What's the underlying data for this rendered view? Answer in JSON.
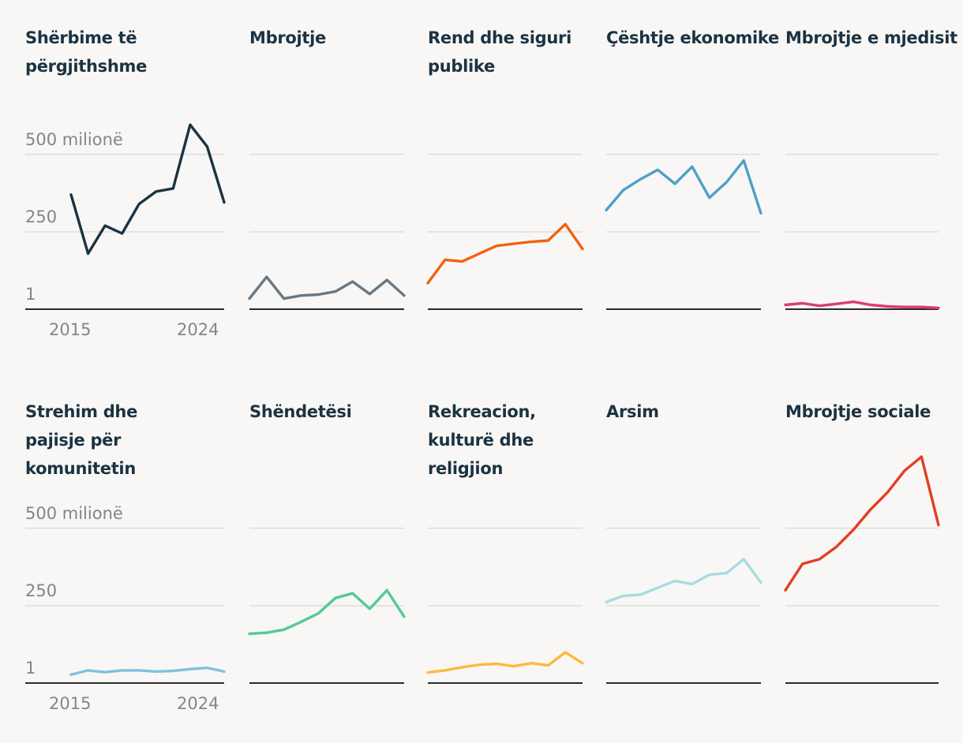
{
  "chart_data": {
    "type": "line",
    "layout": "small-multiples",
    "x": [
      2015,
      2016,
      2017,
      2018,
      2019,
      2020,
      2021,
      2022,
      2023,
      2024
    ],
    "x_tick_labels": [
      "2015",
      "2024"
    ],
    "y_ticks": [
      1,
      250,
      500
    ],
    "y_tick_labels": [
      "1",
      "250",
      "500 milionë"
    ],
    "ylim": [
      1,
      500
    ],
    "grid": true,
    "series": [
      {
        "name": "Shërbime të përgjithshme",
        "color": "#1b3342",
        "values": [
          370,
          180,
          270,
          245,
          340,
          380,
          390,
          595,
          525,
          345
        ]
      },
      {
        "name": "Mbrojtje",
        "color": "#667985",
        "values": [
          35,
          105,
          35,
          45,
          48,
          58,
          90,
          50,
          95,
          45
        ]
      },
      {
        "name": "Rend dhe siguri publike",
        "color": "#f4600f",
        "values": [
          85,
          160,
          155,
          180,
          205,
          212,
          218,
          222,
          275,
          195
        ]
      },
      {
        "name": "Çështje ekonomike",
        "color": "#509fcb",
        "values": [
          320,
          385,
          420,
          450,
          405,
          460,
          360,
          410,
          480,
          310
        ]
      },
      {
        "name": "Mbrojtje e mjedisit",
        "color": "#dc3a77",
        "values": [
          15,
          20,
          12,
          18,
          25,
          15,
          10,
          8,
          8,
          5
        ]
      },
      {
        "name": "Strehim dhe pajisje për komunitetin",
        "color": "#7ec1de",
        "values": [
          28,
          42,
          36,
          42,
          42,
          38,
          40,
          46,
          50,
          38
        ]
      },
      {
        "name": "Shëndetësi",
        "color": "#55c998",
        "values": [
          160,
          163,
          173,
          198,
          225,
          275,
          290,
          240,
          300,
          215
        ]
      },
      {
        "name": "Rekreacion, kulturë dhe religjion",
        "color": "#fbba3f",
        "values": [
          35,
          42,
          52,
          60,
          63,
          55,
          65,
          58,
          100,
          65
        ]
      },
      {
        "name": "Arsim",
        "color": "#a5dde0",
        "values": [
          262,
          282,
          286,
          308,
          330,
          320,
          350,
          355,
          400,
          325
        ]
      },
      {
        "name": "Mbrojtje sociale",
        "color": "#e33e24",
        "values": [
          300,
          385,
          400,
          440,
          495,
          560,
          615,
          685,
          730,
          510
        ]
      }
    ]
  }
}
